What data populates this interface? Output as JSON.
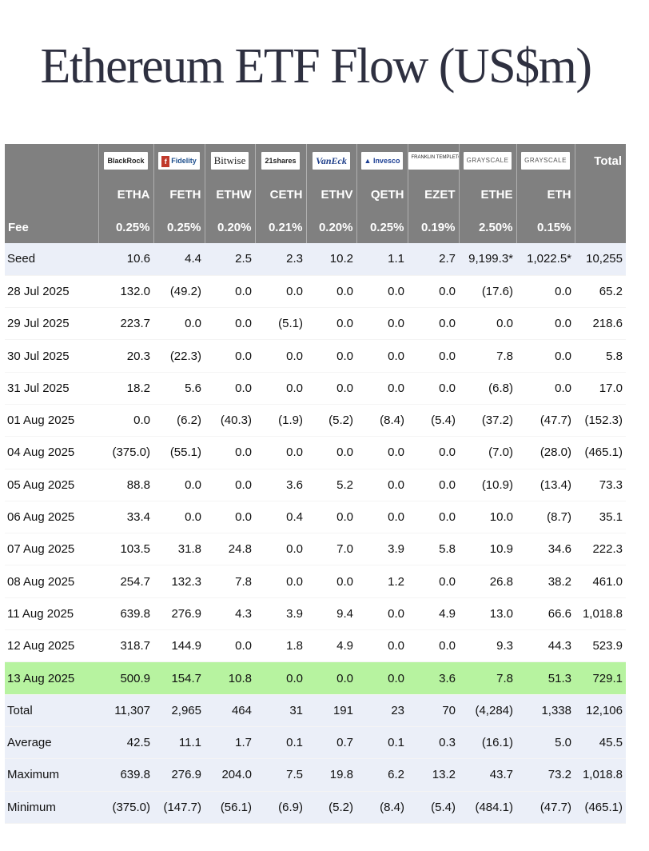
{
  "title": "Ethereum ETF Flow (US$m)",
  "issuers": [
    "BlackRock",
    "Fidelity",
    "Bitwise",
    "21shares",
    "VanEck",
    "Invesco",
    "FRANKLIN TEMPLETON",
    "GRAYSCALE",
    "GRAYSCALE"
  ],
  "total_header": "Total",
  "tickers": [
    "ETHA",
    "FETH",
    "ETHW",
    "CETH",
    "ETHV",
    "QETH",
    "EZET",
    "ETHE",
    "ETH"
  ],
  "fee_label": "Fee",
  "fees": [
    "0.25%",
    "0.25%",
    "0.20%",
    "0.21%",
    "0.20%",
    "0.25%",
    "0.19%",
    "2.50%",
    "0.15%"
  ],
  "accent_colors": {
    "header_bg": "#808080",
    "summary_tint": "#ebeff8",
    "highlight_row": "#b7f3a0",
    "negative_text": "#d93b3b"
  },
  "rows": [
    {
      "label": "Seed",
      "style": "tint",
      "values": [
        "10.6",
        "4.4",
        "2.5",
        "2.3",
        "10.2",
        "1.1",
        "2.7",
        "9,199.3*",
        "1,022.5*",
        "10,255"
      ]
    },
    {
      "label": "28 Jul 2025",
      "style": "",
      "values": [
        "132.0",
        "(49.2)",
        "0.0",
        "0.0",
        "0.0",
        "0.0",
        "0.0",
        "(17.6)",
        "0.0",
        "65.2"
      ]
    },
    {
      "label": "29 Jul 2025",
      "style": "",
      "values": [
        "223.7",
        "0.0",
        "0.0",
        "(5.1)",
        "0.0",
        "0.0",
        "0.0",
        "0.0",
        "0.0",
        "218.6"
      ]
    },
    {
      "label": "30 Jul 2025",
      "style": "",
      "values": [
        "20.3",
        "(22.3)",
        "0.0",
        "0.0",
        "0.0",
        "0.0",
        "0.0",
        "7.8",
        "0.0",
        "5.8"
      ]
    },
    {
      "label": "31 Jul 2025",
      "style": "",
      "values": [
        "18.2",
        "5.6",
        "0.0",
        "0.0",
        "0.0",
        "0.0",
        "0.0",
        "(6.8)",
        "0.0",
        "17.0"
      ]
    },
    {
      "label": "01 Aug 2025",
      "style": "",
      "values": [
        "0.0",
        "(6.2)",
        "(40.3)",
        "(1.9)",
        "(5.2)",
        "(8.4)",
        "(5.4)",
        "(37.2)",
        "(47.7)",
        "(152.3)"
      ]
    },
    {
      "label": "04 Aug 2025",
      "style": "",
      "values": [
        "(375.0)",
        "(55.1)",
        "0.0",
        "0.0",
        "0.0",
        "0.0",
        "0.0",
        "(7.0)",
        "(28.0)",
        "(465.1)"
      ]
    },
    {
      "label": "05 Aug 2025",
      "style": "",
      "values": [
        "88.8",
        "0.0",
        "0.0",
        "3.6",
        "5.2",
        "0.0",
        "0.0",
        "(10.9)",
        "(13.4)",
        "73.3"
      ]
    },
    {
      "label": "06 Aug 2025",
      "style": "",
      "values": [
        "33.4",
        "0.0",
        "0.0",
        "0.4",
        "0.0",
        "0.0",
        "0.0",
        "10.0",
        "(8.7)",
        "35.1"
      ]
    },
    {
      "label": "07 Aug 2025",
      "style": "",
      "values": [
        "103.5",
        "31.8",
        "24.8",
        "0.0",
        "7.0",
        "3.9",
        "5.8",
        "10.9",
        "34.6",
        "222.3"
      ]
    },
    {
      "label": "08 Aug 2025",
      "style": "",
      "values": [
        "254.7",
        "132.3",
        "7.8",
        "0.0",
        "0.0",
        "1.2",
        "0.0",
        "26.8",
        "38.2",
        "461.0"
      ]
    },
    {
      "label": "11 Aug 2025",
      "style": "",
      "values": [
        "639.8",
        "276.9",
        "4.3",
        "3.9",
        "9.4",
        "0.0",
        "4.9",
        "13.0",
        "66.6",
        "1,018.8"
      ]
    },
    {
      "label": "12 Aug 2025",
      "style": "",
      "values": [
        "318.7",
        "144.9",
        "0.0",
        "1.8",
        "4.9",
        "0.0",
        "0.0",
        "9.3",
        "44.3",
        "523.9"
      ]
    },
    {
      "label": "13 Aug 2025",
      "style": "hl",
      "values": [
        "500.9",
        "154.7",
        "10.8",
        "0.0",
        "0.0",
        "0.0",
        "3.6",
        "7.8",
        "51.3",
        "729.1"
      ]
    },
    {
      "label": "Total",
      "style": "tint",
      "values": [
        "11,307",
        "2,965",
        "464",
        "31",
        "191",
        "23",
        "70",
        "(4,284)",
        "1,338",
        "12,106"
      ]
    },
    {
      "label": "Average",
      "style": "tint",
      "values": [
        "42.5",
        "11.1",
        "1.7",
        "0.1",
        "0.7",
        "0.1",
        "0.3",
        "(16.1)",
        "5.0",
        "45.5"
      ]
    },
    {
      "label": "Maximum",
      "style": "tint",
      "values": [
        "639.8",
        "276.9",
        "204.0",
        "7.5",
        "19.8",
        "6.2",
        "13.2",
        "43.7",
        "73.2",
        "1,018.8"
      ]
    },
    {
      "label": "Minimum",
      "style": "tint",
      "values": [
        "(375.0)",
        "(147.7)",
        "(56.1)",
        "(6.9)",
        "(5.2)",
        "(8.4)",
        "(5.4)",
        "(484.1)",
        "(47.7)",
        "(465.1)"
      ]
    }
  ]
}
